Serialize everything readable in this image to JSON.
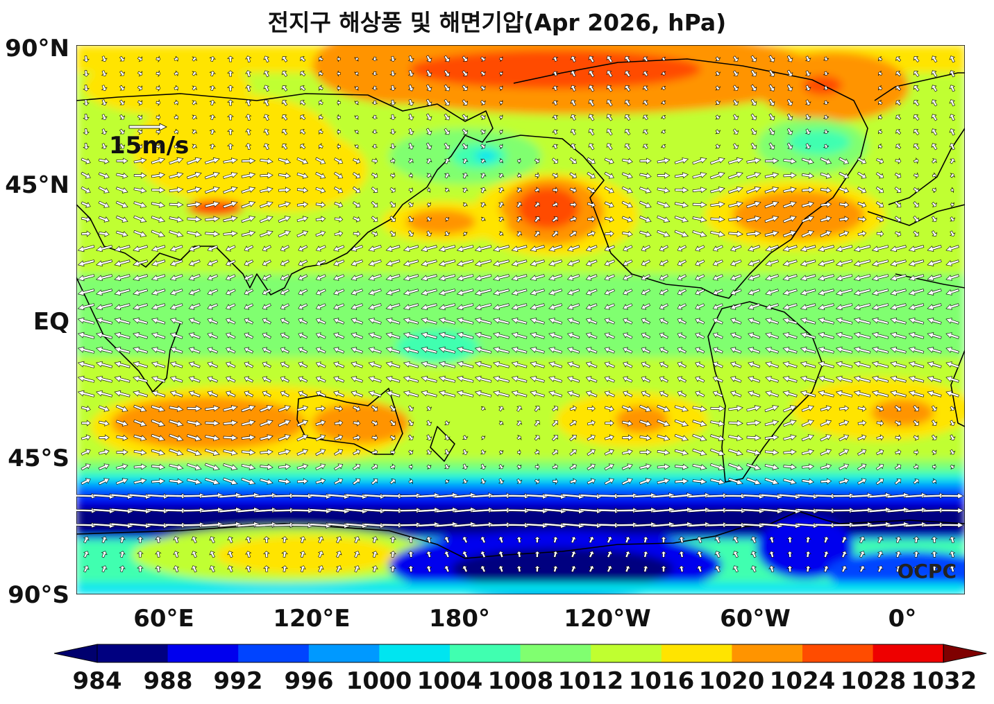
{
  "title": "전지구 해상풍 및 해면기압(Apr 2026, hPa)",
  "y_axis_ticks": [
    "90°N",
    "45°N",
    "EQ",
    "45°S",
    "90°S"
  ],
  "x_axis_ticks": [
    "60°E",
    "120°E",
    "180°",
    "120°W",
    "60°W",
    "0°"
  ],
  "reference_vector_label": "15m/s",
  "watermark": "OCPC",
  "colorbar": {
    "levels": [
      "984",
      "988",
      "992",
      "996",
      "1000",
      "1004",
      "1008",
      "1012",
      "1016",
      "1020",
      "1024",
      "1028",
      "1032"
    ],
    "colors": [
      "#000080",
      "#0000ee",
      "#0044ff",
      "#0099ff",
      "#00e5f0",
      "#40ffb0",
      "#80ff70",
      "#c0ff30",
      "#ffe400",
      "#ff9400",
      "#ff4c00",
      "#ee0000",
      "#7f0000"
    ],
    "under_color": "#00006e",
    "over_color": "#7f0000"
  }
}
